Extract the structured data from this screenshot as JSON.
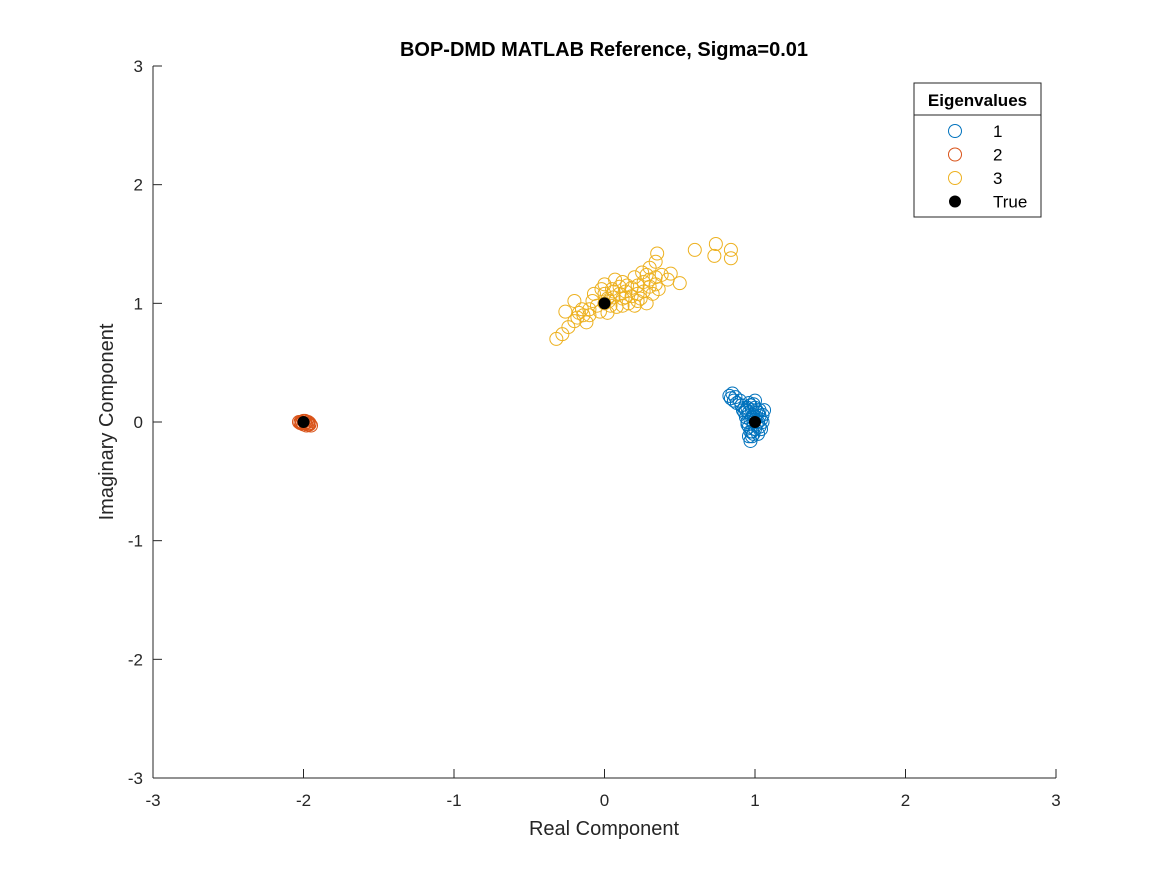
{
  "chart_data": {
    "type": "scatter",
    "title": "BOP-DMD MATLAB Reference, Sigma=0.01",
    "xlabel": "Real Component",
    "ylabel": "Imaginary Component",
    "xlim": [
      -3,
      3
    ],
    "ylim": [
      -3,
      3
    ],
    "xticks": [
      -3,
      -2,
      -1,
      0,
      1,
      2,
      3
    ],
    "yticks": [
      -3,
      -2,
      -1,
      0,
      1,
      2,
      3
    ],
    "grid": false,
    "legend": {
      "title": "Eigenvalues",
      "placement": "top-right"
    },
    "series": [
      {
        "name": "1",
        "marker": "open-circle",
        "color": "#0072BD",
        "points": [
          [
            0.83,
            0.22
          ],
          [
            0.85,
            0.24
          ],
          [
            0.87,
            0.21
          ],
          [
            0.86,
            0.18
          ],
          [
            0.88,
            0.16
          ],
          [
            0.84,
            0.2
          ],
          [
            0.9,
            0.18
          ],
          [
            0.91,
            0.14
          ],
          [
            0.92,
            0.1
          ],
          [
            0.93,
            0.08
          ],
          [
            0.95,
            0.12
          ],
          [
            0.96,
            0.16
          ],
          [
            0.97,
            0.14
          ],
          [
            0.98,
            0.1
          ],
          [
            0.99,
            0.06
          ],
          [
            1.0,
            0.12
          ],
          [
            1.01,
            0.1
          ],
          [
            1.02,
            0.08
          ],
          [
            1.03,
            0.05
          ],
          [
            1.04,
            0.02
          ],
          [
            1.05,
            0.06
          ],
          [
            1.06,
            0.1
          ],
          [
            0.94,
            0.04
          ],
          [
            0.95,
            0.0
          ],
          [
            0.96,
            -0.04
          ],
          [
            0.97,
            -0.08
          ],
          [
            0.98,
            -0.12
          ],
          [
            0.97,
            -0.16
          ],
          [
            0.99,
            -0.1
          ],
          [
            1.0,
            -0.06
          ],
          [
            1.01,
            -0.02
          ],
          [
            1.02,
            0.0
          ],
          [
            1.03,
            -0.04
          ],
          [
            1.0,
            0.02
          ],
          [
            0.98,
            0.04
          ],
          [
            0.96,
            0.08
          ],
          [
            0.94,
            0.1
          ],
          [
            0.99,
            0.0
          ],
          [
            1.01,
            0.04
          ],
          [
            1.04,
            -0.06
          ],
          [
            0.96,
            -0.12
          ],
          [
            0.98,
            -0.08
          ],
          [
            1.0,
            0.18
          ],
          [
            0.99,
            0.15
          ],
          [
            0.97,
            0.02
          ],
          [
            0.95,
            -0.02
          ],
          [
            1.02,
            -0.1
          ],
          [
            0.93,
            0.12
          ],
          [
            1.05,
            0.0
          ],
          [
            1.03,
            0.1
          ]
        ]
      },
      {
        "name": "2",
        "marker": "open-circle",
        "color": "#D95319",
        "points": [
          [
            -2.02,
            0.0
          ],
          [
            -2.0,
            0.01
          ],
          [
            -1.99,
            -0.01
          ],
          [
            -2.01,
            -0.01
          ],
          [
            -1.98,
            0.0
          ],
          [
            -1.97,
            -0.02
          ],
          [
            -1.96,
            -0.02
          ],
          [
            -1.95,
            -0.03
          ],
          [
            -2.03,
            0.0
          ],
          [
            -2.0,
            -0.02
          ],
          [
            -1.98,
            -0.03
          ],
          [
            -1.99,
            0.01
          ],
          [
            -2.01,
            0.0
          ],
          [
            -1.97,
            0.0
          ],
          [
            -1.96,
            -0.01
          ],
          [
            -2.02,
            -0.01
          ]
        ]
      },
      {
        "name": "3",
        "marker": "open-circle",
        "color": "#EDB120",
        "points": [
          [
            -0.32,
            0.7
          ],
          [
            -0.28,
            0.74
          ],
          [
            -0.24,
            0.8
          ],
          [
            -0.2,
            0.85
          ],
          [
            -0.18,
            0.88
          ],
          [
            -0.14,
            0.9
          ],
          [
            -0.1,
            0.95
          ],
          [
            -0.05,
            0.98
          ],
          [
            0.0,
            1.0
          ],
          [
            0.03,
            1.02
          ],
          [
            0.06,
            1.05
          ],
          [
            0.1,
            1.08
          ],
          [
            0.14,
            1.1
          ],
          [
            0.18,
            1.13
          ],
          [
            0.22,
            1.15
          ],
          [
            0.26,
            1.18
          ],
          [
            0.3,
            1.2
          ],
          [
            0.34,
            1.22
          ],
          [
            0.38,
            1.24
          ],
          [
            -0.15,
            0.95
          ],
          [
            -0.08,
            1.02
          ],
          [
            0.0,
            1.08
          ],
          [
            0.05,
            1.12
          ],
          [
            0.12,
            1.18
          ],
          [
            0.2,
            1.22
          ],
          [
            0.25,
            1.26
          ],
          [
            0.3,
            1.3
          ],
          [
            -0.26,
            0.93
          ],
          [
            -0.12,
            0.84
          ],
          [
            0.02,
            0.92
          ],
          [
            0.08,
            0.97
          ],
          [
            0.16,
            1.0
          ],
          [
            0.24,
            1.04
          ],
          [
            0.32,
            1.08
          ],
          [
            0.36,
            1.12
          ],
          [
            0.28,
            1.0
          ],
          [
            0.2,
            0.98
          ],
          [
            0.12,
            0.98
          ],
          [
            0.04,
            0.98
          ],
          [
            -0.03,
            0.93
          ],
          [
            0.1,
            1.14
          ],
          [
            0.18,
            1.06
          ],
          [
            0.26,
            1.1
          ],
          [
            0.34,
            1.16
          ],
          [
            0.42,
            1.2
          ],
          [
            0.44,
            1.25
          ],
          [
            0.5,
            1.17
          ],
          [
            0.35,
            1.42
          ],
          [
            0.34,
            1.35
          ],
          [
            0.0,
            1.16
          ],
          [
            -0.07,
            1.08
          ],
          [
            -0.02,
            1.12
          ],
          [
            0.07,
            1.2
          ],
          [
            0.14,
            1.05
          ],
          [
            0.22,
            1.08
          ],
          [
            0.3,
            1.14
          ],
          [
            0.22,
            1.02
          ],
          [
            0.15,
            1.15
          ],
          [
            -0.2,
            1.02
          ],
          [
            -0.17,
            0.92
          ],
          [
            0.6,
            1.45
          ],
          [
            0.74,
            1.5
          ],
          [
            0.73,
            1.4
          ],
          [
            0.84,
            1.45
          ],
          [
            0.84,
            1.38
          ],
          [
            0.06,
            1.1
          ],
          [
            0.28,
            1.24
          ],
          [
            0.12,
            1.04
          ],
          [
            -0.1,
            0.9
          ],
          [
            0.02,
            1.04
          ]
        ]
      },
      {
        "name": "True",
        "marker": "filled-circle",
        "color": "#000000",
        "points": [
          [
            1,
            0
          ],
          [
            -2,
            0
          ],
          [
            0,
            1
          ]
        ]
      }
    ]
  }
}
